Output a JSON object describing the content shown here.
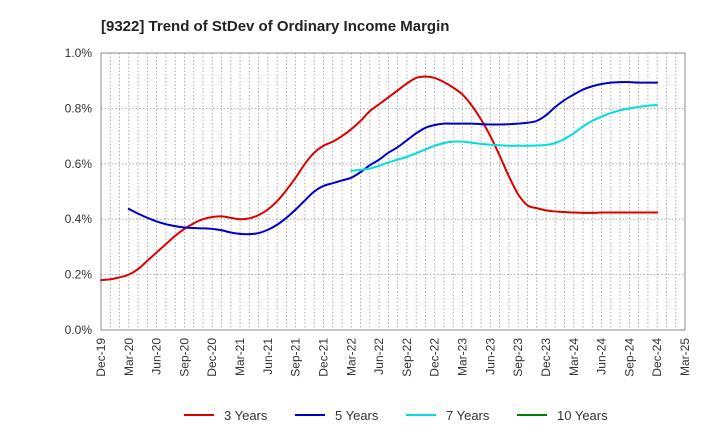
{
  "chart_data": {
    "type": "line",
    "title": "[9322]  Trend of StDev of Ordinary Income Margin",
    "xlabel": "",
    "ylabel": "",
    "x_tick_labels": [
      "Dec-19",
      "Mar-20",
      "Jun-20",
      "Sep-20",
      "Dec-20",
      "Mar-21",
      "Jun-21",
      "Sep-21",
      "Dec-21",
      "Mar-22",
      "Jun-22",
      "Sep-22",
      "Dec-22",
      "Mar-23",
      "Jun-23",
      "Sep-23",
      "Dec-23",
      "Mar-24",
      "Jun-24",
      "Sep-24",
      "Dec-24",
      "Mar-25"
    ],
    "y_tick_labels": [
      "0.0%",
      "0.2%",
      "0.4%",
      "0.6%",
      "0.8%",
      "1.0%"
    ],
    "ylim": [
      0,
      1.0
    ],
    "grid": true,
    "legend_position": "bottom",
    "series": [
      {
        "name": "3 Years",
        "color": "#dd0000",
        "x": [
          "Dec-19",
          "Jan-20",
          "Feb-20",
          "Mar-20",
          "Apr-20",
          "May-20",
          "Jun-20",
          "Jul-20",
          "Aug-20",
          "Sep-20",
          "Oct-20",
          "Nov-20",
          "Dec-20",
          "Jan-21",
          "Feb-21",
          "Mar-21",
          "Apr-21",
          "May-21",
          "Jun-21",
          "Jul-21",
          "Aug-21",
          "Sep-21",
          "Oct-21",
          "Nov-21",
          "Dec-21",
          "Jan-22",
          "Feb-22",
          "Mar-22",
          "Apr-22",
          "May-22",
          "Jun-22",
          "Jul-22",
          "Aug-22",
          "Sep-22",
          "Oct-22",
          "Nov-22",
          "Dec-22",
          "Jan-23",
          "Feb-23",
          "Mar-23",
          "Apr-23",
          "May-23",
          "Jun-23",
          "Jul-23",
          "Aug-23",
          "Sep-23",
          "Oct-23",
          "Nov-23",
          "Dec-23",
          "Jan-24",
          "Feb-24",
          "Mar-24",
          "Apr-24",
          "May-24",
          "Jun-24",
          "Jul-24",
          "Aug-24",
          "Sep-24",
          "Oct-24",
          "Nov-24",
          "Dec-24"
        ],
        "values": [
          0.18,
          0.183,
          0.19,
          0.2,
          0.22,
          0.25,
          0.28,
          0.31,
          0.34,
          0.365,
          0.385,
          0.4,
          0.408,
          0.41,
          0.405,
          0.4,
          0.403,
          0.415,
          0.435,
          0.465,
          0.505,
          0.55,
          0.6,
          0.64,
          0.665,
          0.68,
          0.7,
          0.725,
          0.755,
          0.79,
          0.815,
          0.84,
          0.865,
          0.89,
          0.91,
          0.915,
          0.91,
          0.895,
          0.875,
          0.85,
          0.81,
          0.76,
          0.7,
          0.63,
          0.555,
          0.49,
          0.45,
          0.44,
          0.432,
          0.428,
          0.426,
          0.424,
          0.423,
          0.423,
          0.424,
          0.424,
          0.424,
          0.424,
          0.424,
          0.424,
          0.424
        ]
      },
      {
        "name": "5 Years",
        "color": "#0000cc",
        "x": [
          "Dec-19",
          "Jan-20",
          "Feb-20",
          "Mar-20",
          "Apr-20",
          "May-20",
          "Jun-20",
          "Jul-20",
          "Aug-20",
          "Sep-20",
          "Oct-20",
          "Nov-20",
          "Dec-20",
          "Jan-21",
          "Feb-21",
          "Mar-21",
          "Apr-21",
          "May-21",
          "Jun-21",
          "Jul-21",
          "Aug-21",
          "Sep-21",
          "Oct-21",
          "Nov-21",
          "Dec-21",
          "Jan-22",
          "Feb-22",
          "Mar-22",
          "Apr-22",
          "May-22",
          "Jun-22",
          "Jul-22",
          "Aug-22",
          "Sep-22",
          "Oct-22",
          "Nov-22",
          "Dec-22",
          "Jan-23",
          "Feb-23",
          "Mar-23",
          "Apr-23",
          "May-23",
          "Jun-23",
          "Jul-23",
          "Aug-23",
          "Sep-23",
          "Oct-23",
          "Nov-23",
          "Dec-23",
          "Jan-24",
          "Feb-24",
          "Mar-24",
          "Apr-24",
          "May-24",
          "Jun-24",
          "Jul-24",
          "Aug-24",
          "Sep-24",
          "Oct-24",
          "Nov-24",
          "Dec-24"
        ],
        "values": [
          null,
          null,
          null,
          0.437,
          0.42,
          0.405,
          0.392,
          0.382,
          0.375,
          0.37,
          0.368,
          0.367,
          0.365,
          0.36,
          0.352,
          0.347,
          0.346,
          0.35,
          0.362,
          0.38,
          0.405,
          0.435,
          0.468,
          0.5,
          0.52,
          0.53,
          0.54,
          0.55,
          0.57,
          0.595,
          0.615,
          0.64,
          0.66,
          0.685,
          0.71,
          0.73,
          0.74,
          0.745,
          0.745,
          0.745,
          0.745,
          0.743,
          0.742,
          0.742,
          0.743,
          0.745,
          0.748,
          0.755,
          0.775,
          0.805,
          0.83,
          0.85,
          0.868,
          0.88,
          0.888,
          0.893,
          0.895,
          0.895,
          0.893,
          0.893,
          0.893
        ]
      },
      {
        "name": "7 Years",
        "color": "#00dddd",
        "x": [
          "Dec-19",
          "Jan-20",
          "Feb-20",
          "Mar-20",
          "Apr-20",
          "May-20",
          "Jun-20",
          "Jul-20",
          "Aug-20",
          "Sep-20",
          "Oct-20",
          "Nov-20",
          "Dec-20",
          "Jan-21",
          "Feb-21",
          "Mar-21",
          "Apr-21",
          "May-21",
          "Jun-21",
          "Jul-21",
          "Aug-21",
          "Sep-21",
          "Oct-21",
          "Nov-21",
          "Dec-21",
          "Jan-22",
          "Feb-22",
          "Mar-22",
          "Apr-22",
          "May-22",
          "Jun-22",
          "Jul-22",
          "Aug-22",
          "Sep-22",
          "Oct-22",
          "Nov-22",
          "Dec-22",
          "Jan-23",
          "Feb-23",
          "Mar-23",
          "Apr-23",
          "May-23",
          "Jun-23",
          "Jul-23",
          "Aug-23",
          "Sep-23",
          "Oct-23",
          "Nov-23",
          "Dec-23",
          "Jan-24",
          "Feb-24",
          "Mar-24",
          "Apr-24",
          "May-24",
          "Jun-24",
          "Jul-24",
          "Aug-24",
          "Sep-24",
          "Oct-24",
          "Nov-24",
          "Dec-24"
        ],
        "values": [
          null,
          null,
          null,
          null,
          null,
          null,
          null,
          null,
          null,
          null,
          null,
          null,
          null,
          null,
          null,
          null,
          null,
          null,
          null,
          null,
          null,
          null,
          null,
          null,
          null,
          null,
          null,
          0.575,
          0.578,
          0.583,
          0.593,
          0.605,
          0.615,
          0.625,
          0.638,
          0.652,
          0.665,
          0.675,
          0.68,
          0.68,
          0.676,
          0.672,
          0.669,
          0.667,
          0.665,
          0.665,
          0.665,
          0.666,
          0.668,
          0.675,
          0.69,
          0.71,
          0.735,
          0.755,
          0.77,
          0.783,
          0.793,
          0.8,
          0.805,
          0.81,
          0.812
        ]
      },
      {
        "name": "10 Years",
        "color": "#008000",
        "x": [],
        "values": []
      }
    ]
  }
}
